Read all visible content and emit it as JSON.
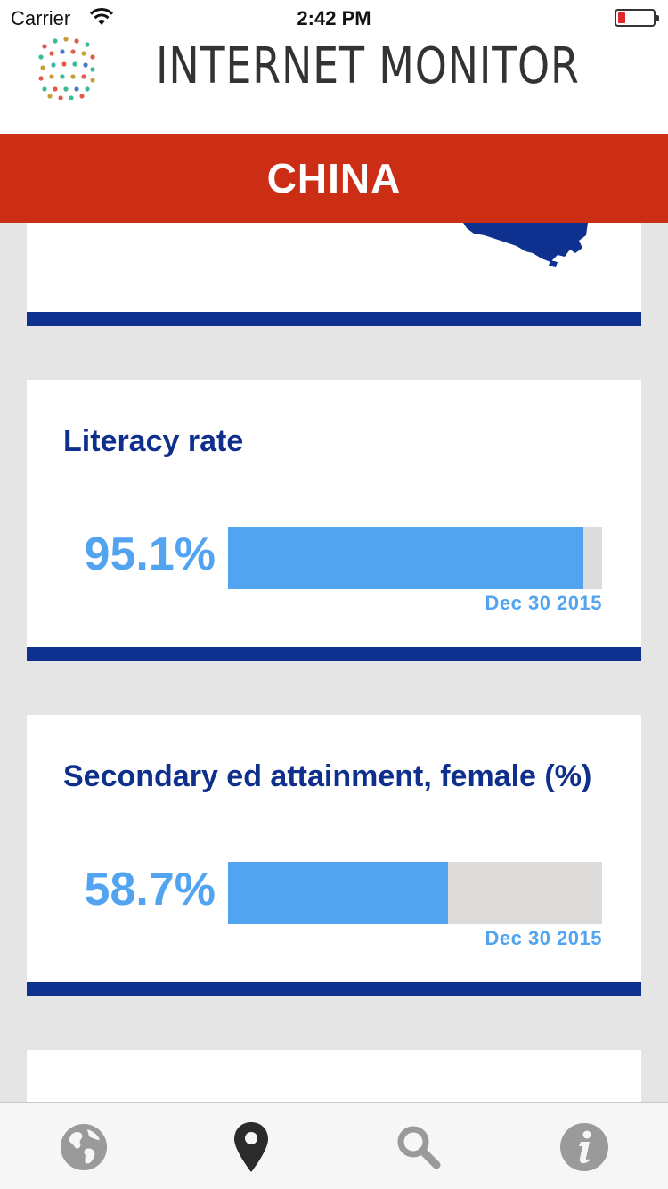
{
  "status_bar": {
    "carrier": "Carrier",
    "time": "2:42 PM"
  },
  "header": {
    "app_title": "INTERNET MONITOR"
  },
  "country": {
    "name": "CHINA"
  },
  "cards": [
    {
      "title": "Literacy rate",
      "value": "95.1%",
      "fraction": 0.951,
      "date": "Dec 30 2015"
    },
    {
      "title": "Secondary ed attainment, female (%)",
      "value": "58.7%",
      "fraction": 0.587,
      "date": "Dec 30 2015"
    }
  ],
  "tabs": [
    {
      "icon": "globe-icon",
      "active": false
    },
    {
      "icon": "location-pin-icon",
      "active": true
    },
    {
      "icon": "search-icon",
      "active": false
    },
    {
      "icon": "info-icon",
      "active": false
    }
  ],
  "colors": {
    "accent_red": "#cc2e15",
    "navy": "#0e3190",
    "bar_blue": "#53a4f0",
    "track_gray": "#dddcdb"
  }
}
